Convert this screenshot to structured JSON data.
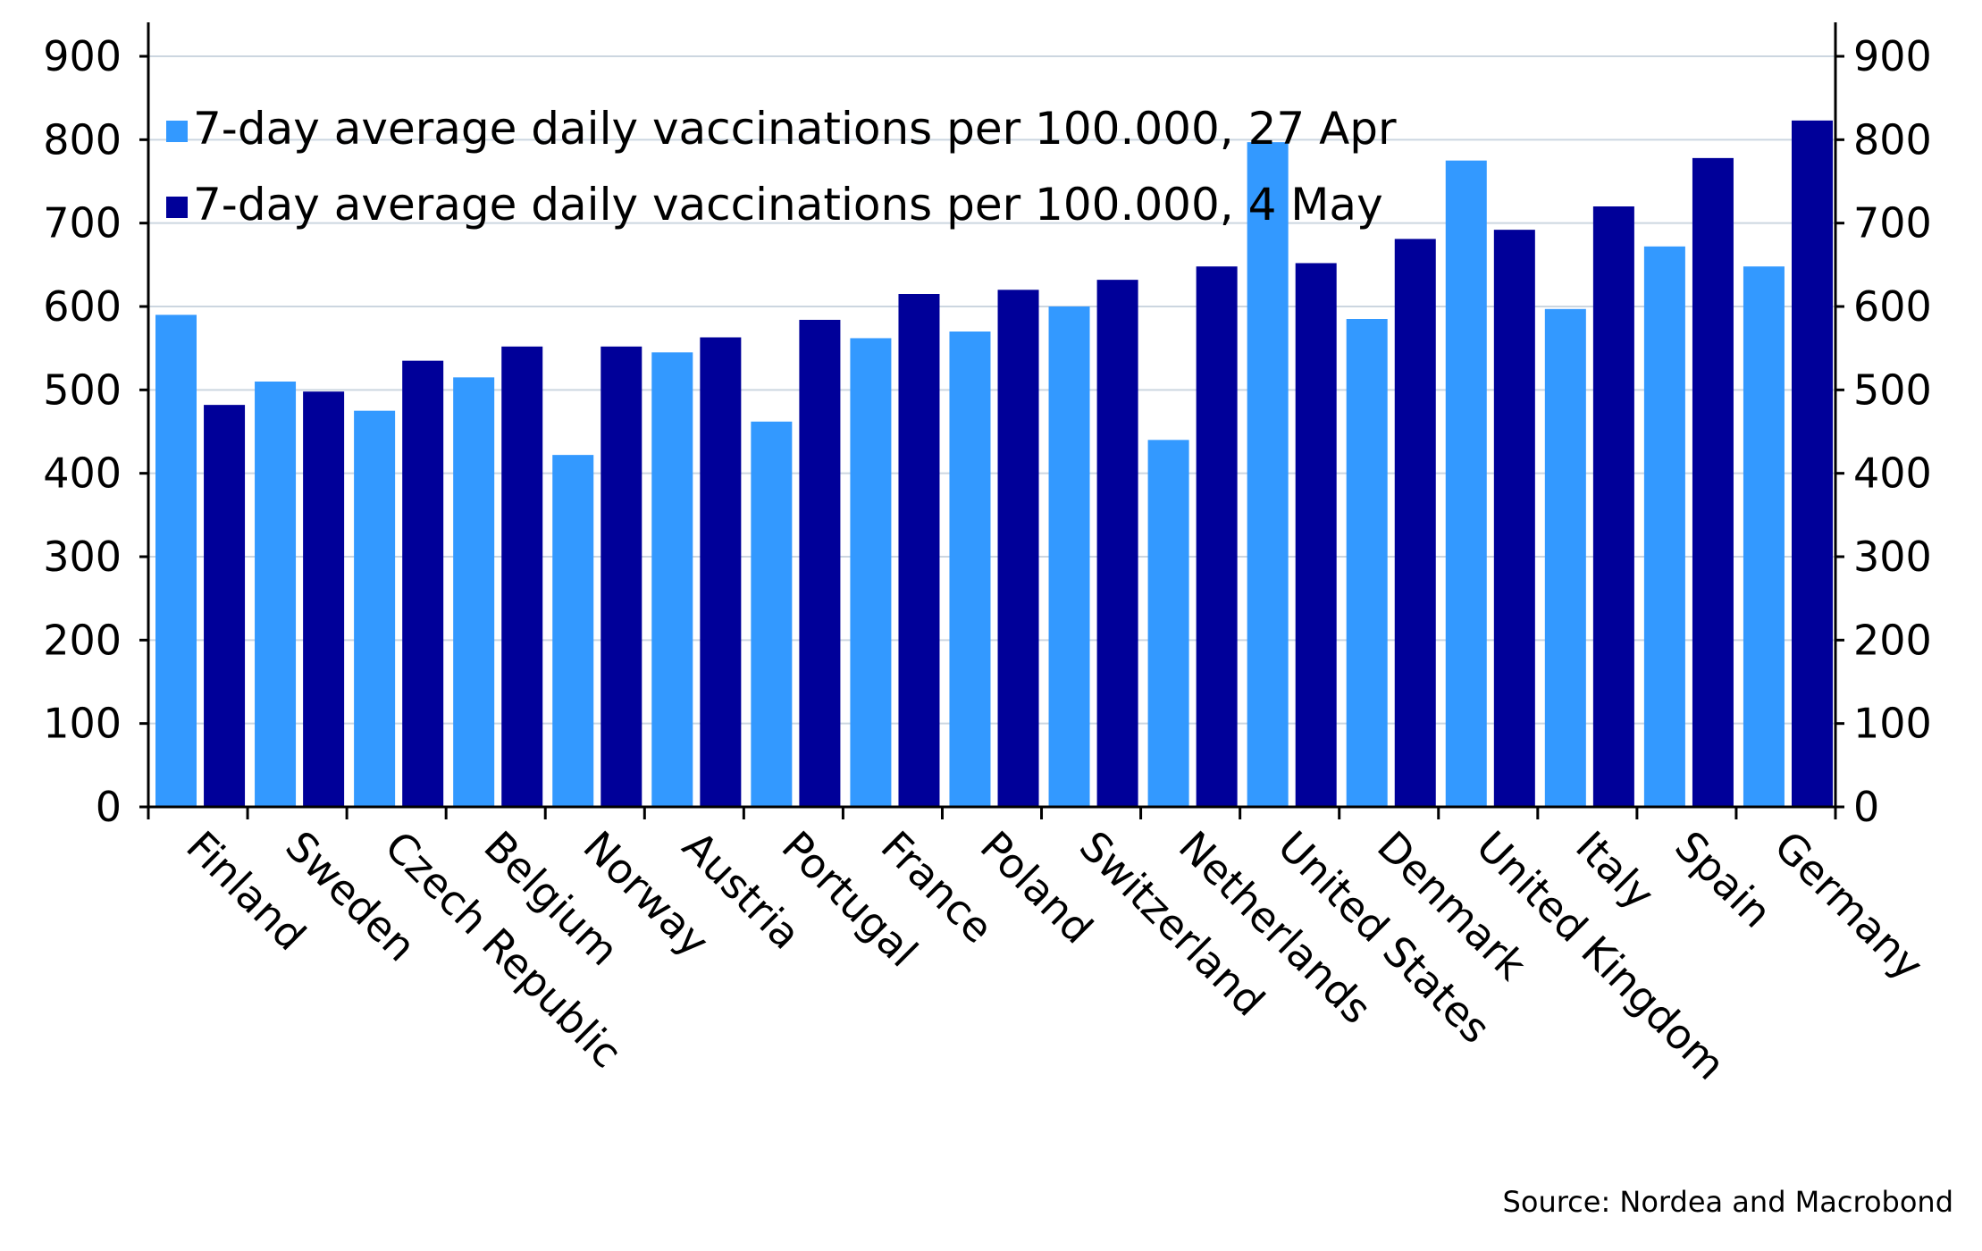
{
  "chart_data": {
    "type": "bar",
    "categories": [
      "Finland",
      "Sweden",
      "Czech Republic",
      "Belgium",
      "Norway",
      "Austria",
      "Portugal",
      "France",
      "Poland",
      "Switzerland",
      "Netherlands",
      "United States",
      "Denmark",
      "United Kingdom",
      "Italy",
      "Spain",
      "Germany"
    ],
    "series": [
      {
        "name": "7-day average daily vaccinations per 100.000, 27 Apr",
        "color": "#3399ff",
        "values": [
          590,
          510,
          475,
          515,
          422,
          545,
          462,
          562,
          570,
          600,
          440,
          797,
          585,
          775,
          597,
          672,
          648
        ]
      },
      {
        "name": "7-day average daily vaccinations per 100.000, 4 May",
        "color": "#000099",
        "values": [
          482,
          498,
          535,
          552,
          552,
          563,
          584,
          615,
          620,
          632,
          648,
          652,
          681,
          692,
          720,
          778,
          823
        ]
      }
    ],
    "ylim": [
      0,
      900
    ],
    "yticks": [
      0,
      100,
      200,
      300,
      400,
      500,
      600,
      700,
      800,
      900
    ],
    "ytick_labels": [
      "0",
      "100",
      "200",
      "300",
      "400",
      "500",
      "600",
      "700",
      "800",
      "900"
    ],
    "right_axis": true,
    "grid": true,
    "grid_color": "#ccd6e0",
    "legend_position": "top-left",
    "title": "",
    "xlabel": "",
    "ylabel": "",
    "source": "Source: Nordea and Macrobond"
  }
}
